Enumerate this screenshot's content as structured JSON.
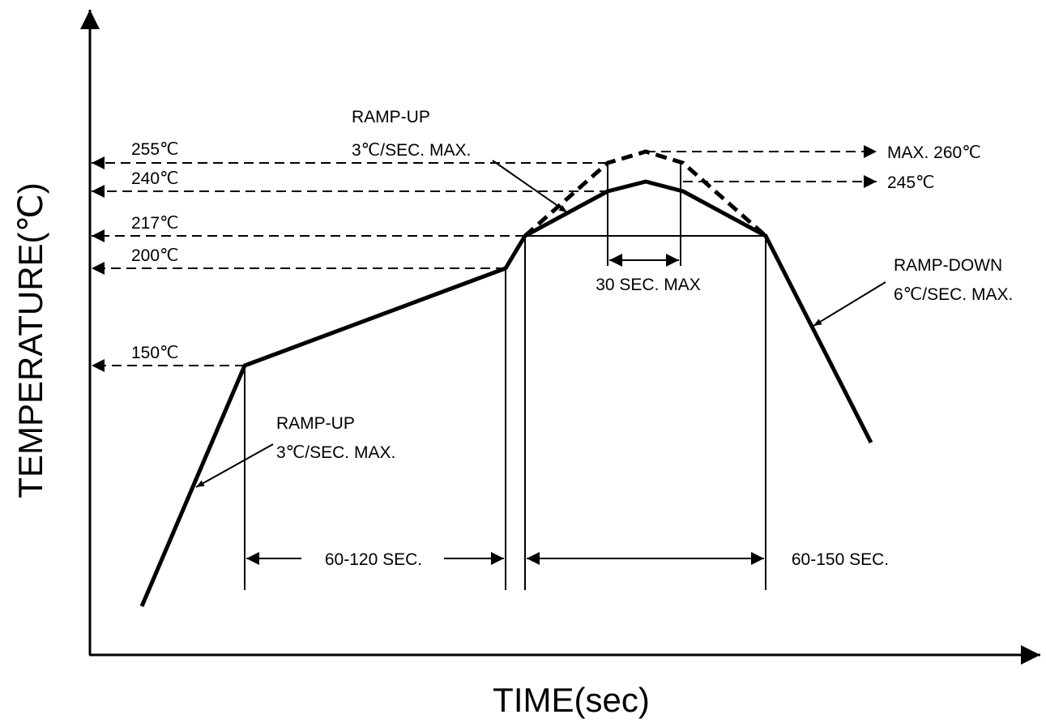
{
  "axes": {
    "x_title": "TIME(sec)",
    "y_title": "TEMPERATURE(℃)"
  },
  "temperature_levels": [
    {
      "name": "level-255",
      "label": "255℃"
    },
    {
      "name": "level-240",
      "label": "240℃"
    },
    {
      "name": "level-217",
      "label": "217℃"
    },
    {
      "name": "level-200",
      "label": "200℃"
    },
    {
      "name": "level-150",
      "label": "150℃"
    }
  ],
  "peak_labels": {
    "max": "MAX. 260℃",
    "target": "245℃"
  },
  "annotations": {
    "ramp_up_top_line1": "RAMP-UP",
    "ramp_up_top_line2": "3℃/SEC. MAX.",
    "ramp_up_bottom_line1": "RAMP-UP",
    "ramp_up_bottom_line2": "3℃/SEC. MAX.",
    "ramp_down_line1": "RAMP-DOWN",
    "ramp_down_line2": "6℃/SEC. MAX.",
    "peak_window": "30 SEC. MAX",
    "soak_window": "60-120 SEC.",
    "liquidus_window": "60-150 SEC."
  }
}
